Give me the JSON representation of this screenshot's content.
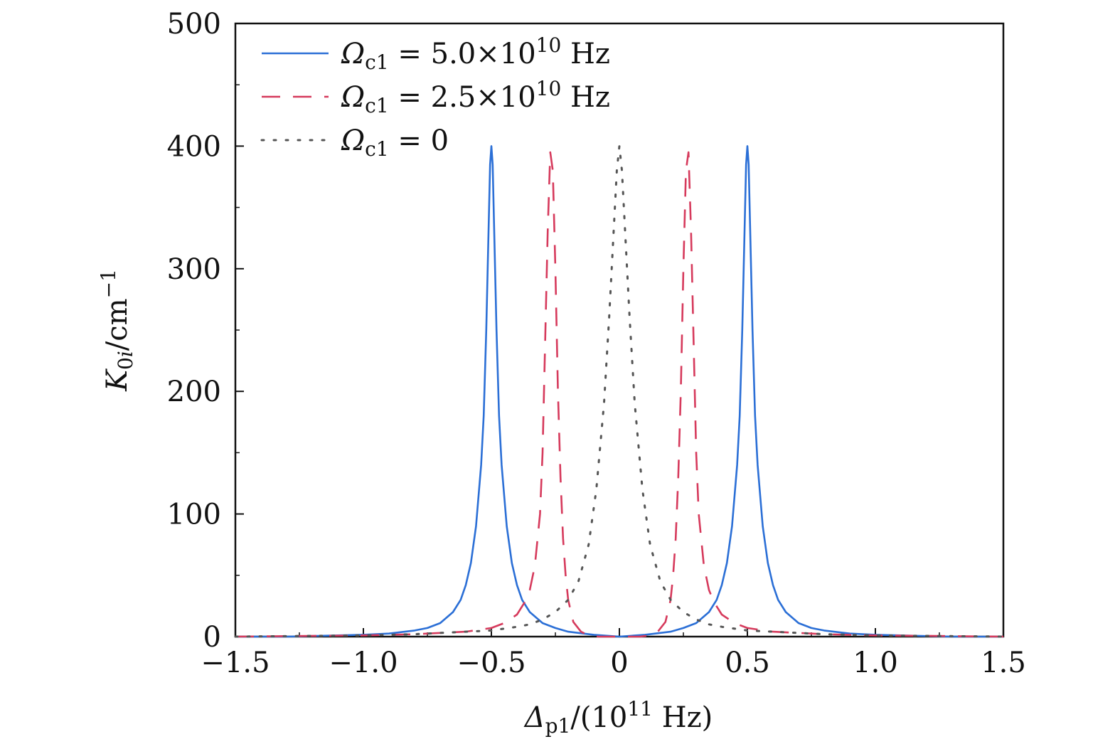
{
  "chart_data": {
    "type": "line",
    "title": "",
    "xlabel": {
      "symbol": "Δ",
      "subscript": "p1",
      "unit_prefix": "/(10",
      "exponent": "11",
      "unit_suffix": " Hz)"
    },
    "ylabel": {
      "symbol": "K",
      "subscript_main": "0",
      "subscript_italic": "i",
      "unit": "/cm",
      "exponent": "−1"
    },
    "xlim": [
      -1.5,
      1.5
    ],
    "ylim": [
      0,
      500
    ],
    "xticks": [
      {
        "value": -1.5,
        "label": "−1.5"
      },
      {
        "value": -1.0,
        "label": "−1.0"
      },
      {
        "value": -0.5,
        "label": "−0.5"
      },
      {
        "value": 0,
        "label": "0"
      },
      {
        "value": 0.5,
        "label": "0.5"
      },
      {
        "value": 1.0,
        "label": "1.0"
      },
      {
        "value": 1.5,
        "label": "1.5"
      }
    ],
    "yticks": [
      {
        "value": 0,
        "label": "0"
      },
      {
        "value": 100,
        "label": "100"
      },
      {
        "value": 200,
        "label": "200"
      },
      {
        "value": 300,
        "label": "300"
      },
      {
        "value": 400,
        "label": "400"
      },
      {
        "value": 500,
        "label": "500"
      }
    ],
    "legend_position": "top-left",
    "series": [
      {
        "name": "Ωc1 = 5.0×10^10 Hz",
        "legend": {
          "symbol": "Ω",
          "sub": "c1",
          "eq": " = 5.0×10",
          "exp": "10",
          "tail": " Hz"
        },
        "color": "#2b6fd6",
        "style": "solid",
        "x": [
          -1.5,
          -1.3,
          -1.1,
          -1.0,
          -0.9,
          -0.8,
          -0.75,
          -0.7,
          -0.65,
          -0.62,
          -0.6,
          -0.58,
          -0.56,
          -0.54,
          -0.53,
          -0.52,
          -0.51,
          -0.505,
          -0.5,
          -0.495,
          -0.49,
          -0.48,
          -0.47,
          -0.46,
          -0.44,
          -0.42,
          -0.4,
          -0.38,
          -0.35,
          -0.3,
          -0.25,
          -0.2,
          -0.1,
          0,
          0.1,
          0.2,
          0.25,
          0.3,
          0.35,
          0.38,
          0.4,
          0.42,
          0.44,
          0.46,
          0.47,
          0.48,
          0.49,
          0.495,
          0.5,
          0.505,
          0.51,
          0.52,
          0.53,
          0.54,
          0.56,
          0.58,
          0.6,
          0.62,
          0.65,
          0.7,
          0.75,
          0.8,
          0.9,
          1.0,
          1.1,
          1.3,
          1.5
        ],
        "y": [
          0,
          0,
          1,
          1.5,
          2.5,
          5,
          7,
          11,
          20,
          30,
          42,
          60,
          90,
          140,
          180,
          250,
          340,
          385,
          400,
          385,
          340,
          250,
          180,
          140,
          90,
          60,
          42,
          30,
          20,
          11,
          7,
          4,
          1.5,
          0,
          1.5,
          4,
          7,
          11,
          20,
          30,
          42,
          60,
          90,
          140,
          180,
          250,
          340,
          385,
          400,
          385,
          340,
          250,
          180,
          140,
          90,
          60,
          42,
          30,
          20,
          11,
          7,
          5,
          2.5,
          1.5,
          1,
          0,
          0
        ]
      },
      {
        "name": "Ωc1 = 2.5×10^10 Hz",
        "legend": {
          "symbol": "Ω",
          "sub": "c1",
          "eq": " = 2.5×10",
          "exp": "10",
          "tail": " Hz"
        },
        "color": "#d63a5c",
        "style": "dashed",
        "x": [
          -1.5,
          -1.0,
          -0.8,
          -0.7,
          -0.6,
          -0.5,
          -0.45,
          -0.4,
          -0.37,
          -0.35,
          -0.33,
          -0.31,
          -0.3,
          -0.29,
          -0.28,
          -0.27,
          -0.26,
          -0.25,
          -0.24,
          -0.23,
          -0.22,
          -0.21,
          -0.2,
          -0.18,
          -0.15,
          -0.12,
          -0.08,
          -0.04,
          0,
          0.04,
          0.08,
          0.12,
          0.15,
          0.18,
          0.2,
          0.21,
          0.22,
          0.23,
          0.24,
          0.25,
          0.26,
          0.27,
          0.28,
          0.29,
          0.3,
          0.31,
          0.33,
          0.35,
          0.37,
          0.4,
          0.45,
          0.5,
          0.6,
          0.7,
          0.8,
          1.0,
          1.5
        ],
        "y": [
          0,
          1,
          2,
          3,
          4,
          7,
          11,
          18,
          28,
          38,
          58,
          100,
          150,
          240,
          330,
          395,
          380,
          300,
          200,
          130,
          80,
          50,
          30,
          12,
          4,
          1,
          0,
          0,
          0,
          0,
          0,
          1,
          4,
          12,
          30,
          50,
          80,
          130,
          200,
          300,
          380,
          395,
          330,
          240,
          150,
          100,
          58,
          38,
          28,
          18,
          11,
          7,
          4,
          3,
          2,
          1,
          0
        ]
      },
      {
        "name": "Ωc1 = 0",
        "legend": {
          "symbol": "Ω",
          "sub": "c1",
          "eq": " = 0",
          "exp": "",
          "tail": ""
        },
        "color": "#555555",
        "style": "dotted",
        "x": [
          -1.5,
          -1.0,
          -0.8,
          -0.6,
          -0.5,
          -0.4,
          -0.35,
          -0.3,
          -0.25,
          -0.2,
          -0.16,
          -0.12,
          -0.09,
          -0.06,
          -0.04,
          -0.02,
          -0.01,
          0,
          0.01,
          0.02,
          0.04,
          0.06,
          0.09,
          0.12,
          0.16,
          0.2,
          0.25,
          0.3,
          0.35,
          0.4,
          0.5,
          0.6,
          0.8,
          1.0,
          1.5
        ],
        "y": [
          0,
          1,
          2,
          4,
          5,
          8,
          10,
          14,
          20,
          30,
          45,
          75,
          120,
          190,
          260,
          340,
          380,
          400,
          380,
          340,
          260,
          190,
          120,
          75,
          45,
          30,
          20,
          14,
          10,
          8,
          5,
          4,
          2,
          1,
          0
        ]
      }
    ]
  }
}
